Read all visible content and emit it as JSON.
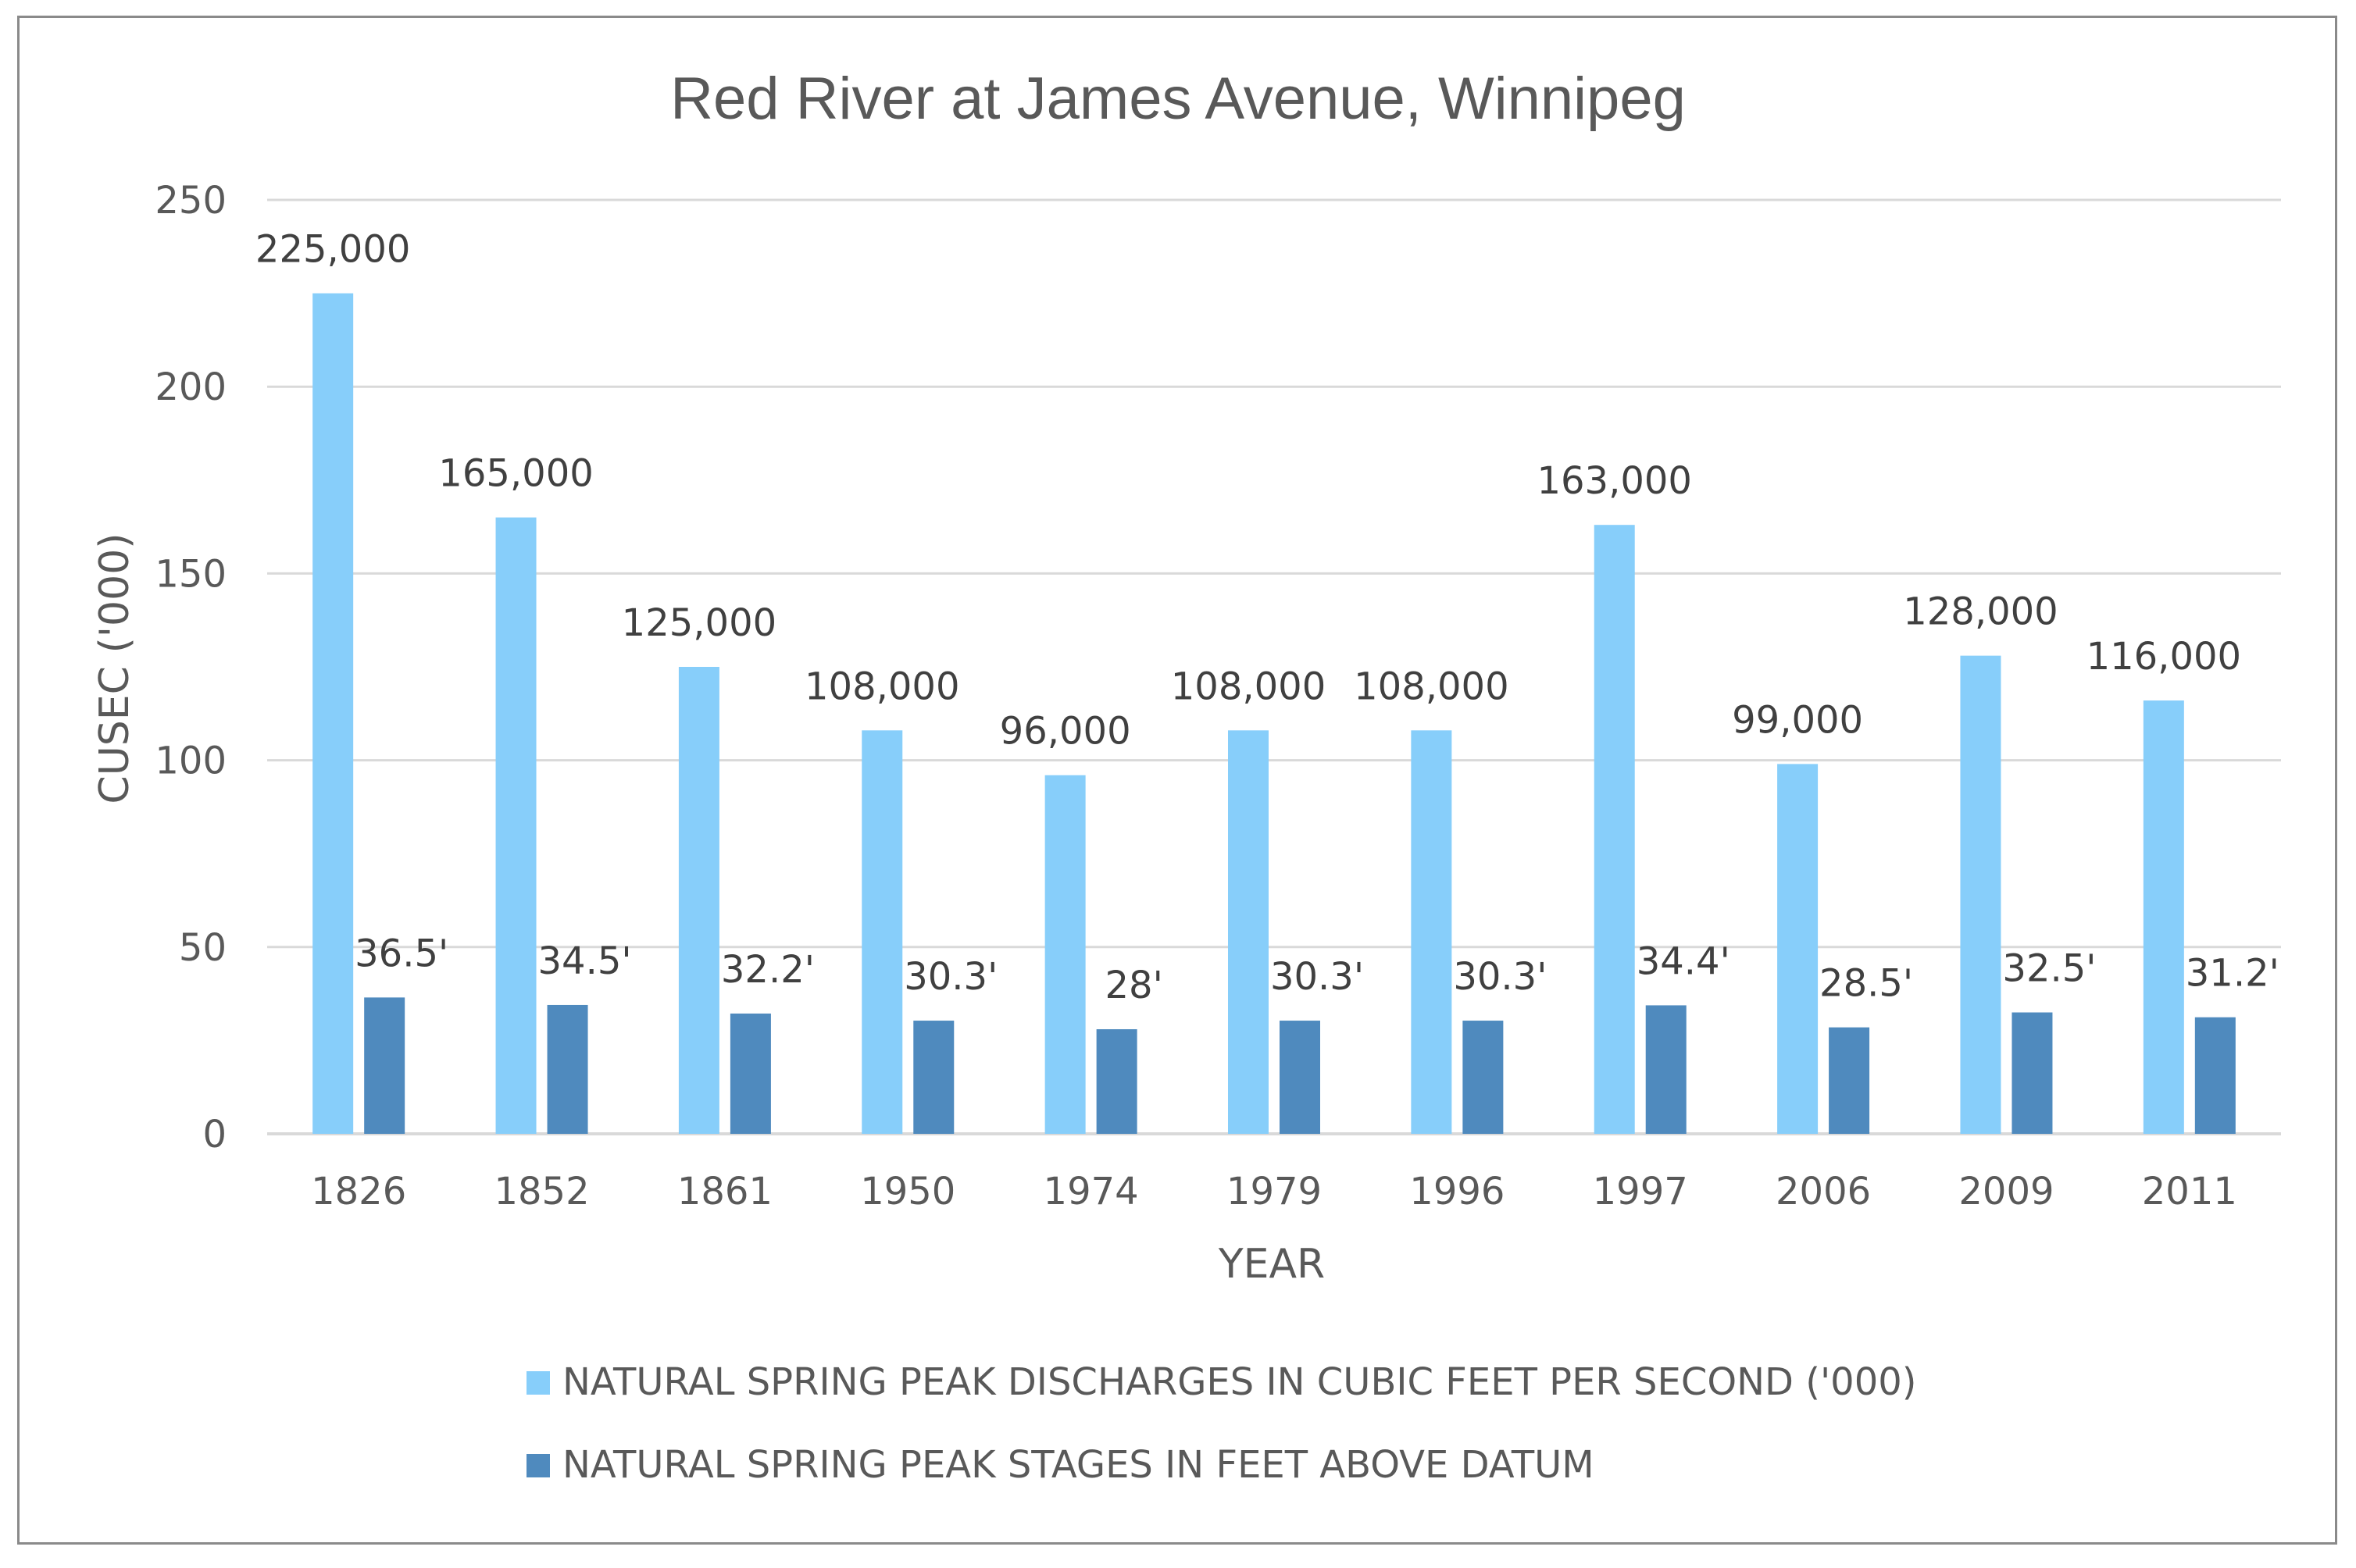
{
  "chart_data": {
    "type": "bar",
    "title": "Red River at James Avenue, Winnipeg",
    "xlabel": "YEAR",
    "ylabel": "CUSEC ('000)",
    "ylim": [
      0,
      250
    ],
    "yticks": [
      0,
      50,
      100,
      150,
      200,
      250
    ],
    "grid": true,
    "legend_position": "bottom",
    "categories": [
      "1826",
      "1852",
      "1861",
      "1950",
      "1974",
      "1979",
      "1996",
      "1997",
      "2006",
      "2009",
      "2011"
    ],
    "series": [
      {
        "name": "NATURAL SPRING PEAK DISCHARGES IN CUBIC FEET PER SECOND ('000)",
        "color": "#87CEFA",
        "values": [
          225,
          165,
          125,
          108,
          96,
          108,
          108,
          163,
          99,
          128,
          116
        ],
        "labels": [
          "225,000",
          "165,000",
          "125,000",
          "108,000",
          "96,000",
          "108,000",
          "108,000",
          "163,000",
          "99,000",
          "128,000",
          "116,000"
        ]
      },
      {
        "name": "NATURAL SPRING PEAK STAGES IN FEET ABOVE DATUM",
        "color": "#4F8ABE",
        "values": [
          36.5,
          34.5,
          32.2,
          30.3,
          28,
          30.3,
          30.3,
          34.4,
          28.5,
          32.5,
          31.2
        ],
        "labels": [
          "36.5'",
          "34.5'",
          "32.2'",
          "30.3'",
          "28'",
          "30.3'",
          "30.3'",
          "34.4'",
          "28.5'",
          "32.5'",
          "31.2'"
        ]
      }
    ]
  }
}
